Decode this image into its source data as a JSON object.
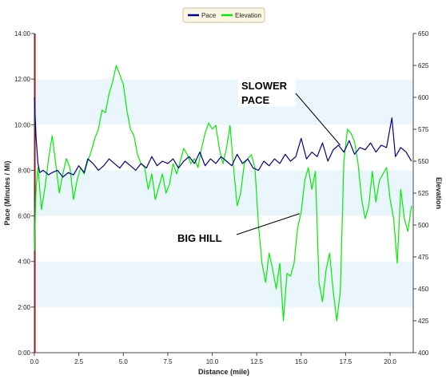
{
  "chart_data": {
    "type": "line",
    "xlabel": "Distance (mile)",
    "ylabel_left": "Pace (Minutes / Mi)",
    "ylabel_right": "Elevation",
    "xlim": [
      0,
      21.3
    ],
    "ylim_left": [
      0,
      14
    ],
    "ylim_right": [
      400,
      650
    ],
    "x_ticks": [
      "0.0",
      "2.5",
      "5.0",
      "7.5",
      "10.0",
      "12.5",
      "15.0",
      "17.5",
      "20.0"
    ],
    "y_left_ticks": [
      "0:00",
      "2:00",
      "4:00",
      "6:00",
      "8:00",
      "10:00",
      "12:00",
      "14:00"
    ],
    "y_right_ticks": [
      "400",
      "425",
      "450",
      "475",
      "500",
      "525",
      "550",
      "575",
      "600",
      "625",
      "650"
    ],
    "grid": "alternating horizontal bands",
    "legend": {
      "placement": "top-center"
    },
    "series": [
      {
        "name": "Pace",
        "axis": "left",
        "color": "#00008b",
        "x": [
          0.0,
          0.1,
          0.2,
          0.3,
          0.5,
          0.8,
          1.0,
          1.3,
          1.6,
          1.9,
          2.2,
          2.5,
          2.8,
          3.0,
          3.3,
          3.6,
          3.9,
          4.2,
          4.5,
          4.8,
          5.1,
          5.4,
          5.7,
          6.0,
          6.3,
          6.6,
          6.9,
          7.2,
          7.5,
          7.8,
          8.1,
          8.4,
          8.7,
          9.0,
          9.3,
          9.6,
          9.9,
          10.2,
          10.5,
          10.8,
          11.1,
          11.4,
          11.7,
          12.0,
          12.3,
          12.6,
          12.9,
          13.2,
          13.5,
          13.8,
          14.1,
          14.4,
          14.7,
          15.0,
          15.3,
          15.6,
          15.9,
          16.2,
          16.5,
          16.8,
          17.1,
          17.4,
          17.7,
          18.0,
          18.3,
          18.6,
          18.9,
          19.2,
          19.5,
          19.8,
          20.1,
          20.3,
          20.6,
          20.9,
          21.2
        ],
        "values": [
          11.2,
          9.4,
          8.3,
          7.9,
          8.0,
          7.8,
          7.9,
          8.0,
          7.7,
          7.9,
          7.8,
          8.2,
          7.9,
          8.5,
          8.3,
          8.0,
          8.2,
          8.5,
          8.3,
          8.1,
          8.4,
          8.2,
          8.0,
          8.3,
          8.1,
          8.6,
          8.2,
          8.4,
          8.3,
          8.5,
          8.1,
          8.4,
          8.6,
          8.3,
          8.8,
          8.2,
          8.5,
          8.3,
          8.6,
          8.4,
          8.2,
          8.7,
          8.3,
          8.5,
          8.1,
          8.0,
          8.4,
          8.2,
          8.5,
          8.3,
          8.7,
          8.4,
          8.6,
          9.4,
          8.5,
          8.8,
          8.6,
          9.2,
          8.4,
          8.9,
          9.1,
          8.8,
          9.3,
          8.7,
          9.0,
          8.9,
          9.2,
          8.8,
          9.1,
          9.0,
          10.3,
          8.6,
          9.0,
          8.8,
          8.4
        ]
      },
      {
        "name": "Elevation",
        "axis": "right",
        "color": "#00ee00",
        "x": [
          0.0,
          0.1,
          0.2,
          0.4,
          0.6,
          0.8,
          1.0,
          1.2,
          1.4,
          1.6,
          1.8,
          2.0,
          2.2,
          2.4,
          2.6,
          2.8,
          3.0,
          3.2,
          3.4,
          3.6,
          3.8,
          4.0,
          4.2,
          4.4,
          4.6,
          4.8,
          5.0,
          5.2,
          5.4,
          5.6,
          5.8,
          6.0,
          6.2,
          6.4,
          6.6,
          6.8,
          7.0,
          7.2,
          7.4,
          7.6,
          7.8,
          8.0,
          8.2,
          8.4,
          8.6,
          8.8,
          9.0,
          9.2,
          9.4,
          9.6,
          9.8,
          10.0,
          10.2,
          10.4,
          10.6,
          10.8,
          11.0,
          11.2,
          11.4,
          11.6,
          11.8,
          12.0,
          12.2,
          12.4,
          12.6,
          12.8,
          13.0,
          13.2,
          13.4,
          13.6,
          13.8,
          14.0,
          14.2,
          14.4,
          14.6,
          14.8,
          15.0,
          15.2,
          15.4,
          15.6,
          15.8,
          16.0,
          16.2,
          16.4,
          16.6,
          16.8,
          17.0,
          17.2,
          17.4,
          17.6,
          17.8,
          18.0,
          18.2,
          18.4,
          18.6,
          18.8,
          19.0,
          19.2,
          19.4,
          19.6,
          19.8,
          20.0,
          20.2,
          20.4,
          20.6,
          20.8,
          21.0,
          21.2
        ],
        "values": [
          480,
          530,
          545,
          512,
          530,
          552,
          570,
          548,
          525,
          540,
          552,
          545,
          520,
          535,
          545,
          540,
          550,
          558,
          568,
          575,
          590,
          588,
          603,
          612,
          625,
          618,
          610,
          590,
          575,
          570,
          555,
          548,
          545,
          528,
          540,
          520,
          530,
          540,
          525,
          532,
          548,
          540,
          550,
          560,
          555,
          548,
          552,
          545,
          560,
          572,
          580,
          575,
          578,
          560,
          548,
          560,
          578,
          545,
          515,
          525,
          548,
          552,
          555,
          545,
          500,
          470,
          455,
          478,
          465,
          450,
          470,
          425,
          462,
          460,
          470,
          498,
          510,
          535,
          545,
          528,
          542,
          455,
          440,
          465,
          478,
          448,
          425,
          448,
          550,
          575,
          572,
          565,
          548,
          520,
          505,
          515,
          542,
          518,
          535,
          540,
          545,
          520,
          505,
          470,
          528,
          505,
          495,
          515
        ]
      }
    ],
    "annotations": [
      {
        "text_lines": [
          "SLOWER",
          "PACE"
        ],
        "x": 17.2,
        "y": 9.1,
        "axis": "left"
      },
      {
        "text_lines": [
          "BIG HILL"
        ],
        "x": 15.0,
        "y": 6.1,
        "axis": "left"
      }
    ]
  }
}
